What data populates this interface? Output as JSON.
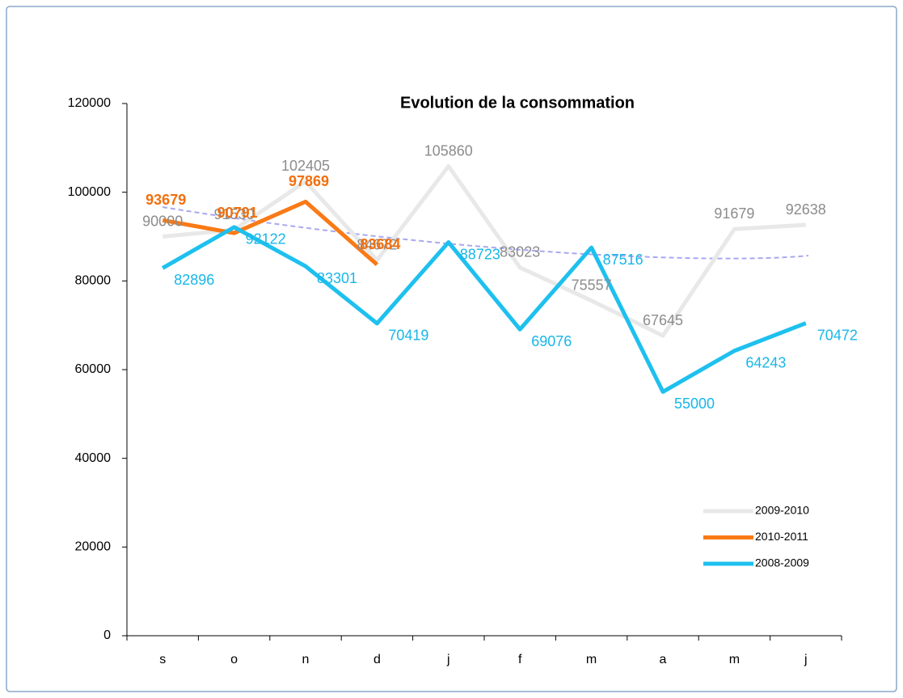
{
  "chart_data": {
    "type": "line",
    "title": "Evolution de la consommation",
    "categories": [
      "s",
      "o",
      "n",
      "d",
      "j",
      "f",
      "m",
      "a",
      "m",
      "j"
    ],
    "series": [
      {
        "name": "2009-2010",
        "color": "#e8e8e8",
        "label_color": "#8c8c8c",
        "values": [
          90000,
          91530,
          102405,
          84672,
          105860,
          83023,
          75557,
          67645,
          91679,
          92638
        ]
      },
      {
        "name": "2010-2011",
        "color": "#f97a16",
        "label_color": "#f26f0d",
        "values": [
          93679,
          90791,
          97869,
          83684,
          null,
          null,
          null,
          null,
          null,
          null
        ]
      },
      {
        "name": "2008-2009",
        "color": "#1ec0ee",
        "label_color": "#17b7e8",
        "values": [
          82896,
          92122,
          83301,
          70419,
          88723,
          69076,
          87516,
          55000,
          64243,
          70472
        ]
      }
    ],
    "ylim": [
      0,
      120000
    ],
    "yticks": [
      0,
      20000,
      40000,
      60000,
      80000,
      100000,
      120000
    ],
    "legend": "lower right",
    "grid": false
  }
}
